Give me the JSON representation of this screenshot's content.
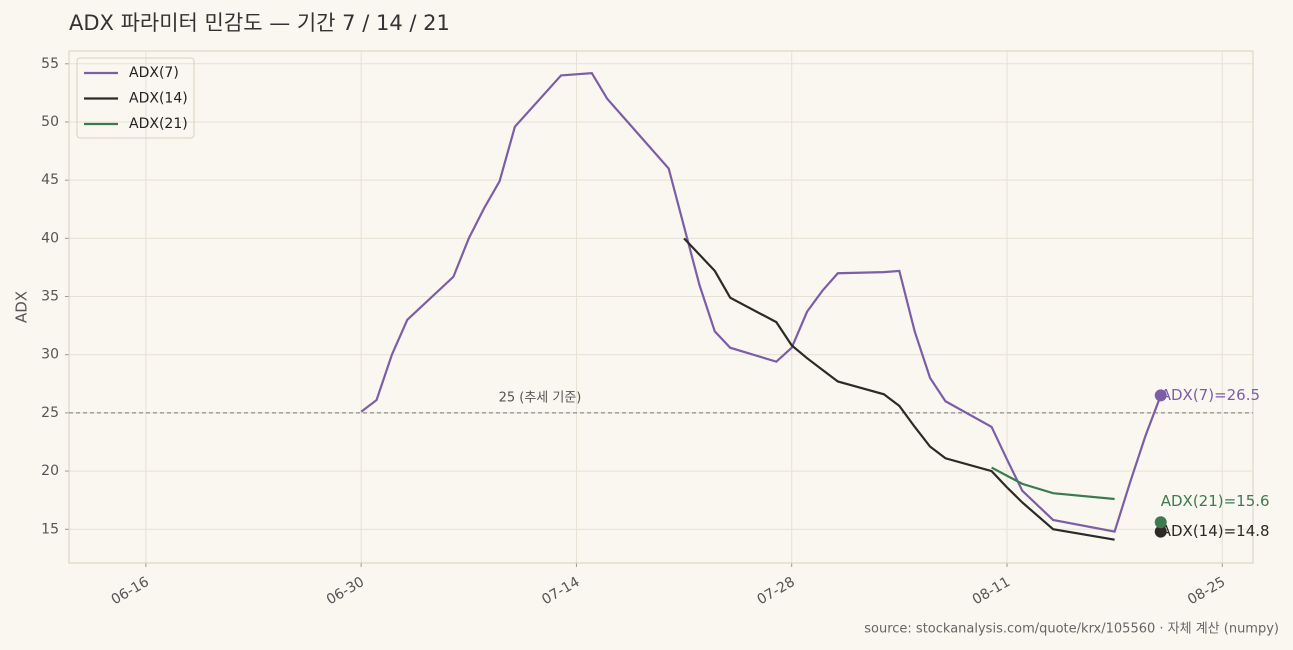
{
  "chart_data": {
    "type": "line",
    "title": "ADX 파라미터 민감도 — 기간 7 / 14 / 21",
    "y_label": "ADX",
    "source": "source: stockanalysis.com/quote/krx/105560  ·  자체 계산 (numpy)",
    "x": [
      "06-30",
      "07-01",
      "07-02",
      "07-03",
      "07-06",
      "07-07",
      "07-08",
      "07-09",
      "07-10",
      "07-13",
      "07-15",
      "07-16",
      "07-20",
      "07-21",
      "07-22",
      "07-23",
      "07-24",
      "07-27",
      "07-28",
      "07-29",
      "07-30",
      "07-31",
      "08-03",
      "08-04",
      "08-05",
      "08-06",
      "08-07",
      "08-10",
      "08-11",
      "08-12",
      "08-14",
      "08-18",
      "08-19",
      "08-20",
      "08-21"
    ],
    "series": [
      {
        "name": "ADX(7)",
        "color": "#7b5ea7",
        "end_label": "ADX(7)=26.5",
        "values": [
          25.1,
          26.1,
          30.0,
          33.0,
          36.7,
          40.0,
          42.6,
          44.9,
          49.6,
          54.0,
          54.2,
          52.0,
          46.0,
          41.0,
          36.0,
          32.0,
          30.6,
          29.4,
          30.6,
          33.7,
          35.5,
          37.0,
          37.1,
          37.2,
          32.0,
          28.0,
          26.0,
          23.8,
          21.0,
          18.3,
          15.8,
          14.8,
          19.0,
          23.0,
          26.5
        ]
      },
      {
        "name": "ADX(14)",
        "color": "#2d2a26",
        "end_label": "ADX(14)=14.8",
        "values": [
          null,
          null,
          null,
          null,
          null,
          null,
          null,
          null,
          null,
          null,
          null,
          null,
          null,
          40.0,
          38.6,
          37.2,
          34.9,
          32.8,
          30.8,
          29.7,
          28.7,
          27.7,
          26.6,
          25.6,
          23.8,
          22.1,
          21.1,
          20.0,
          18.6,
          17.3,
          15.0,
          14.1,
          null,
          null,
          14.8
        ]
      },
      {
        "name": "ADX(21)",
        "color": "#3d7a50",
        "end_label": "ADX(21)=15.6",
        "values": [
          null,
          null,
          null,
          null,
          null,
          null,
          null,
          null,
          null,
          null,
          null,
          null,
          null,
          null,
          null,
          null,
          null,
          null,
          null,
          null,
          null,
          null,
          null,
          null,
          null,
          null,
          null,
          20.3,
          19.6,
          18.9,
          18.1,
          17.6,
          null,
          null,
          15.6
        ]
      }
    ],
    "xlim": [
      "06-11",
      "08-27"
    ],
    "xticks": [
      "06-16",
      "06-30",
      "07-14",
      "07-28",
      "08-11",
      "08-25"
    ],
    "ylim": [
      12.1,
      56.1
    ],
    "yticks": [
      15,
      20,
      25,
      30,
      35,
      40,
      45,
      50,
      55
    ],
    "hline": {
      "value": 25,
      "label": "25 (추세 기준)"
    },
    "grid": true,
    "legend": "upper left"
  }
}
